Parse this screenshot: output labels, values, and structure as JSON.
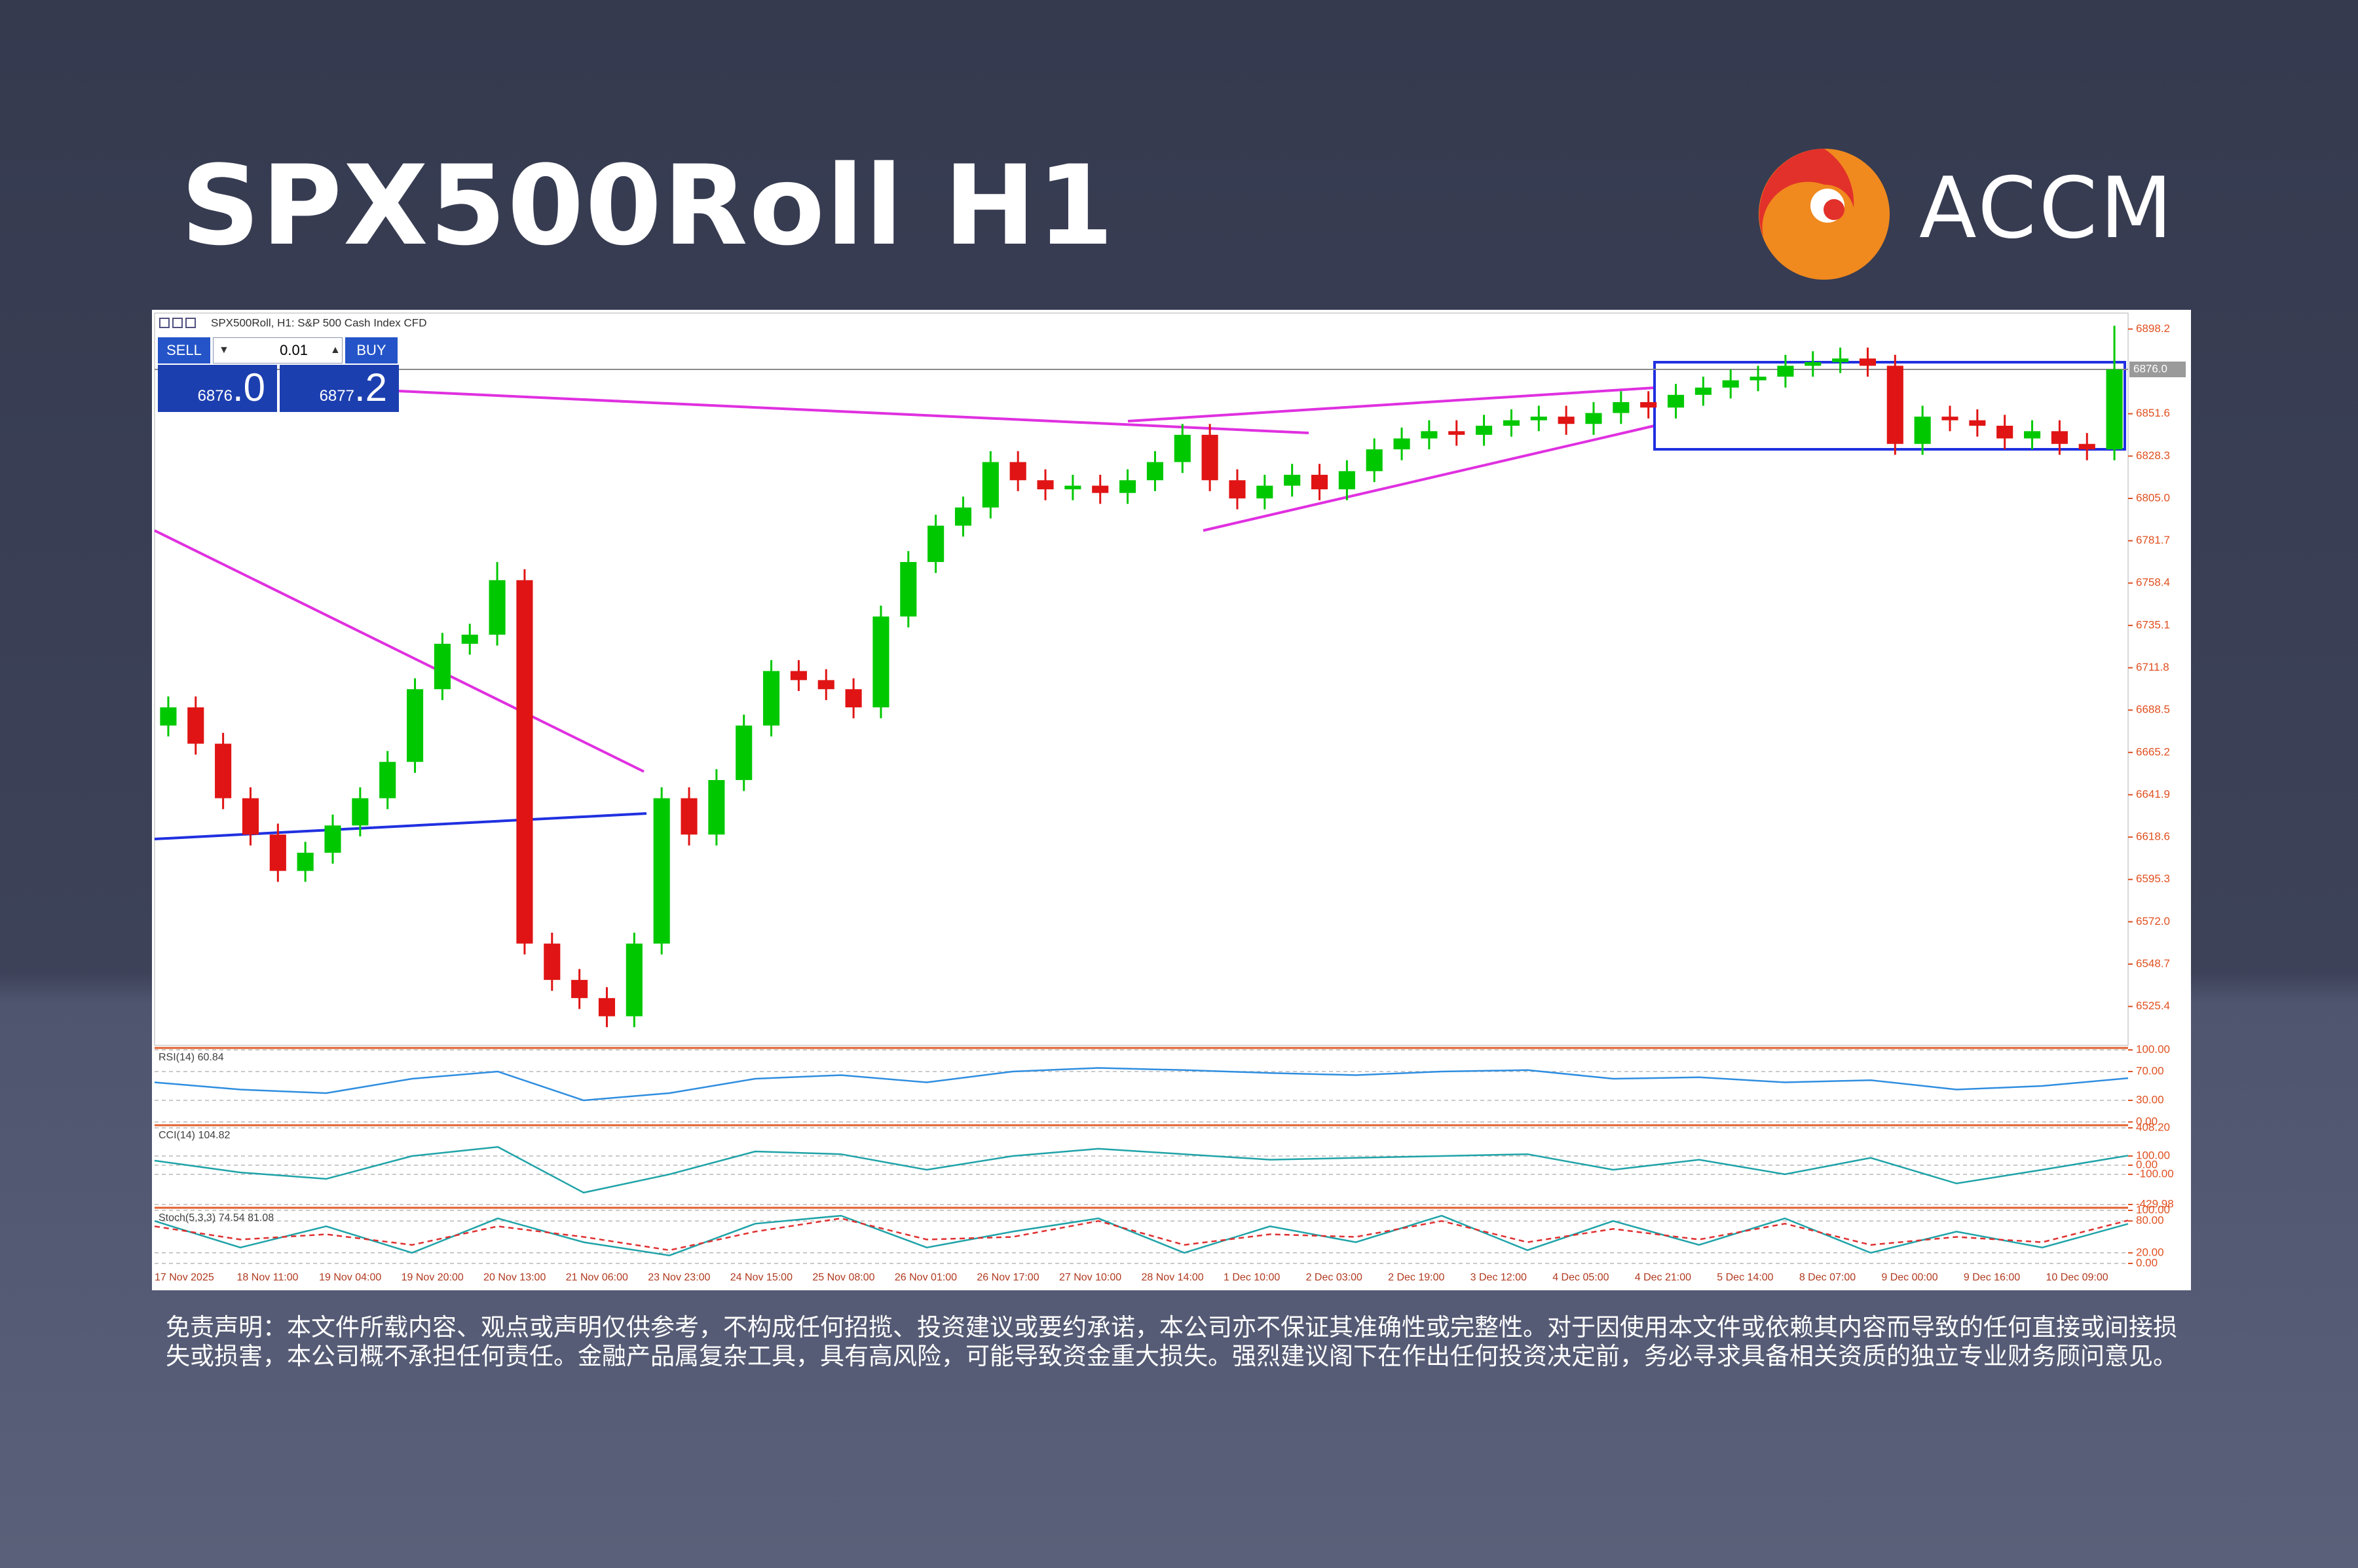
{
  "header": {
    "title": "SPX500Roll H1",
    "logo": "ACCM"
  },
  "trade_panel": {
    "sell": "SELL",
    "lot": "0.01",
    "buy": "BUY",
    "bid": "6876",
    "bid_fraction": ".0",
    "ask": "6877",
    "ask_fraction": ".2"
  },
  "disclaimer": "免责声明：本文件所载内容、观点或声明仅供参考，不构成任何招揽、投资建议或要约承诺，本公司亦不保证其准确性或完整性。对于因使用本文件或依赖其内容而导致的任何直接或间接损失或损害，本公司概不承担任何责任。金融产品属复杂工具，具有高风险，可能导致资金重大损失。强烈建议阁下在作出任何投资决定前，务必寻求具备相关资质的独立专业财务顾问意见。",
  "chart_data": [
    {
      "type": "candlestick",
      "title": "SPX500Roll, H1:  S&P 500 Cash Index CFD",
      "categories": [
        "17 Nov 2025",
        null,
        null,
        "18 Nov 11:00",
        null,
        null,
        "19 Nov 04:00",
        null,
        null,
        "19 Nov 20:00",
        null,
        null,
        "20 Nov 13:00",
        null,
        null,
        "21 Nov 06:00",
        null,
        null,
        "23 Nov 23:00",
        null,
        null,
        "24 Nov 15:00",
        null,
        null,
        "25 Nov 08:00",
        null,
        null,
        "26 Nov 01:00",
        null,
        null,
        "26 Nov 17:00",
        null,
        null,
        "27 Nov 10:00",
        null,
        null,
        "28 Nov 14:00",
        null,
        null,
        "1 Dec 10:00",
        null,
        null,
        "2 Dec 03:00",
        null,
        null,
        "2 Dec 19:00",
        null,
        null,
        "3 Dec 12:00",
        null,
        null,
        "4 Dec 05:00",
        null,
        null,
        "4 Dec 21:00",
        null,
        null,
        "5 Dec 14:00",
        null,
        null,
        "8 Dec 07:00",
        null,
        null,
        "9 Dec 00:00",
        null,
        null,
        "9 Dec 16:00",
        null,
        null,
        "10 Dec 09:00",
        null,
        null
      ],
      "open": [
        6680,
        6690,
        6670,
        6640,
        6620,
        6600,
        6610,
        6625,
        6640,
        6660,
        6700,
        6725,
        6730,
        6760,
        6560,
        6540,
        6530,
        6520,
        6560,
        6640,
        6620,
        6650,
        6680,
        6710,
        6705,
        6700,
        6690,
        6740,
        6770,
        6790,
        6800,
        6825,
        6815,
        6810,
        6812,
        6808,
        6815,
        6825,
        6840,
        6815,
        6805,
        6812,
        6818,
        6810,
        6820,
        6832,
        6838,
        6842,
        6840,
        6845,
        6848,
        6850,
        6846,
        6852,
        6858,
        6855,
        6862,
        6866,
        6870,
        6872,
        6878,
        6880,
        6882,
        6878,
        6835,
        6850,
        6848,
        6845,
        6838,
        6842,
        6835,
        6832
      ],
      "high": [
        6696,
        6696,
        6676,
        6646,
        6626,
        6616,
        6631,
        6646,
        6666,
        6706,
        6731,
        6736,
        6770,
        6766,
        6566,
        6546,
        6536,
        6566,
        6646,
        6646,
        6656,
        6686,
        6716,
        6716,
        6711,
        6706,
        6746,
        6776,
        6796,
        6806,
        6831,
        6831,
        6821,
        6818,
        6818,
        6821,
        6831,
        6846,
        6846,
        6821,
        6818,
        6824,
        6824,
        6826,
        6838,
        6844,
        6848,
        6848,
        6851,
        6854,
        6856,
        6856,
        6858,
        6864,
        6864,
        6868,
        6872,
        6876,
        6878,
        6884,
        6886,
        6888,
        6888,
        6884,
        6856,
        6856,
        6854,
        6851,
        6848,
        6848,
        6841,
        6900
      ],
      "low": [
        6674,
        6664,
        6634,
        6614,
        6594,
        6594,
        6604,
        6619,
        6634,
        6654,
        6694,
        6719,
        6724,
        6554,
        6534,
        6524,
        6514,
        6514,
        6554,
        6614,
        6614,
        6644,
        6674,
        6699,
        6694,
        6684,
        6684,
        6734,
        6764,
        6784,
        6794,
        6809,
        6804,
        6804,
        6802,
        6802,
        6809,
        6819,
        6809,
        6799,
        6799,
        6806,
        6804,
        6804,
        6814,
        6826,
        6832,
        6834,
        6834,
        6839,
        6842,
        6840,
        6840,
        6846,
        6849,
        6849,
        6856,
        6860,
        6864,
        6866,
        6872,
        6874,
        6872,
        6829,
        6829,
        6842,
        6839,
        6832,
        6832,
        6829,
        6826,
        6826
      ],
      "close": [
        6690,
        6670,
        6640,
        6620,
        6600,
        6610,
        6625,
        6640,
        6660,
        6700,
        6725,
        6730,
        6760,
        6560,
        6540,
        6530,
        6520,
        6560,
        6640,
        6620,
        6650,
        6680,
        6710,
        6705,
        6700,
        6690,
        6740,
        6770,
        6790,
        6800,
        6825,
        6815,
        6810,
        6812,
        6808,
        6815,
        6825,
        6840,
        6815,
        6805,
        6812,
        6818,
        6810,
        6820,
        6832,
        6838,
        6842,
        6840,
        6845,
        6848,
        6850,
        6846,
        6852,
        6858,
        6855,
        6862,
        6866,
        6870,
        6872,
        6878,
        6880,
        6882,
        6878,
        6835,
        6850,
        6848,
        6845,
        6838,
        6842,
        6835,
        6832,
        6876
      ],
      "up_color": "#00c800",
      "down_color": "#e01414",
      "ylim": [
        6504,
        6907
      ],
      "yticks": [
        6898.2,
        6851.6,
        6828.3,
        {
          "value": 6805,
          "label": "6805.0"
        },
        6781.7,
        6758.4,
        6735.1,
        6711.8,
        6688.5,
        6665.2,
        6641.9,
        6618.6,
        6595.3,
        {
          "value": 6572,
          "label": "6572.0"
        },
        6548.7,
        6525.4
      ],
      "current_price": {
        "value": 6876,
        "label": "6876.0"
      },
      "grid": false
    },
    {
      "type": "line",
      "title": "RSI(14) 60.84",
      "ylim": [
        0,
        100
      ],
      "yticks": [
        {
          "value": 100,
          "label": "100.00"
        },
        {
          "value": 70,
          "label": "70.00"
        },
        {
          "value": 30,
          "label": "30.00"
        },
        {
          "value": 0,
          "label": "0.00"
        }
      ],
      "series": [
        {
          "color": "#2f8ee0",
          "values": [
            55,
            45,
            40,
            60,
            70,
            30,
            40,
            60,
            65,
            55,
            70,
            75,
            72,
            68,
            65,
            70,
            72,
            60,
            62,
            55,
            58,
            45,
            50,
            60.84
          ]
        }
      ],
      "grid": true
    },
    {
      "type": "line",
      "title": "CCI(14) 104.82",
      "ylim": [
        -429.98,
        408.2
      ],
      "yticks": [
        {
          "value": 408.2,
          "label": "408.20"
        },
        {
          "value": 100,
          "label": "100.00"
        },
        {
          "value": 0,
          "label": "0.00"
        },
        {
          "value": -100,
          "label": "-100.00"
        },
        -429.98
      ],
      "series": [
        {
          "color": "#1fa3a8",
          "values": [
            50,
            -80,
            -150,
            100,
            200,
            -300,
            -100,
            150,
            120,
            -50,
            100,
            180,
            120,
            60,
            80,
            100,
            120,
            -50,
            60,
            -100,
            80,
            -200,
            -50,
            104.82
          ]
        }
      ],
      "grid": true
    },
    {
      "type": "line",
      "title": "Stoch(5,3,3) 74.54 81.08",
      "ylim": [
        0,
        100
      ],
      "yticks": [
        {
          "value": 100,
          "label": "100.00"
        },
        {
          "value": 80,
          "label": "80.00"
        },
        {
          "value": 20,
          "label": "20.00"
        },
        {
          "value": 0,
          "label": "0.00"
        }
      ],
      "series": [
        {
          "color": "#1fa3a8",
          "values": [
            80,
            30,
            70,
            20,
            85,
            40,
            15,
            75,
            90,
            30,
            60,
            85,
            20,
            70,
            40,
            90,
            25,
            80,
            35,
            85,
            20,
            60,
            30,
            74.54
          ]
        },
        {
          "color": "#e03030",
          "line_style": "dashed",
          "values": [
            70,
            45,
            55,
            35,
            70,
            50,
            25,
            60,
            85,
            45,
            50,
            80,
            35,
            55,
            50,
            80,
            40,
            65,
            45,
            75,
            35,
            50,
            40,
            81.08
          ]
        }
      ],
      "grid": true
    }
  ]
}
